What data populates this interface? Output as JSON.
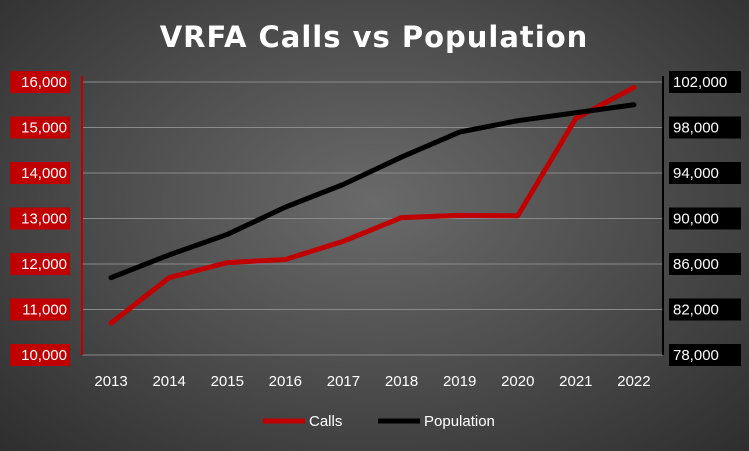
{
  "chart_data": {
    "type": "line",
    "title": "VRFA Calls vs Population",
    "categories": [
      "2013",
      "2014",
      "2015",
      "2016",
      "2017",
      "2018",
      "2019",
      "2020",
      "2021",
      "2022"
    ],
    "series": [
      {
        "name": "Calls",
        "axis": "left",
        "color": "#c00000",
        "values": [
          10700,
          11700,
          12030,
          12100,
          12500,
          13020,
          13070,
          13060,
          15200,
          15880
        ]
      },
      {
        "name": "Population",
        "axis": "right",
        "color": "#000000",
        "values": [
          84800,
          86800,
          88600,
          91000,
          93000,
          95400,
          97600,
          98600,
          99300,
          100000
        ]
      }
    ],
    "left_axis": {
      "ylim": [
        10000,
        16000
      ],
      "ticks": [
        "10,000",
        "11,000",
        "12,000",
        "13,000",
        "14,000",
        "15,000",
        "16,000"
      ],
      "tick_values": [
        10000,
        11000,
        12000,
        13000,
        14000,
        15000,
        16000
      ],
      "tick_label_bg": "#c00000"
    },
    "right_axis": {
      "ylim": [
        78000,
        102000
      ],
      "ticks": [
        "78,000",
        "82,000",
        "86,000",
        "90,000",
        "94,000",
        "98,000",
        "102,000"
      ],
      "tick_values": [
        78000,
        82000,
        86000,
        90000,
        94000,
        98000,
        102000
      ],
      "tick_label_bg": "#000000"
    },
    "grid": true,
    "legend": "bottom",
    "legend_entries": [
      "Calls",
      "Population"
    ]
  }
}
